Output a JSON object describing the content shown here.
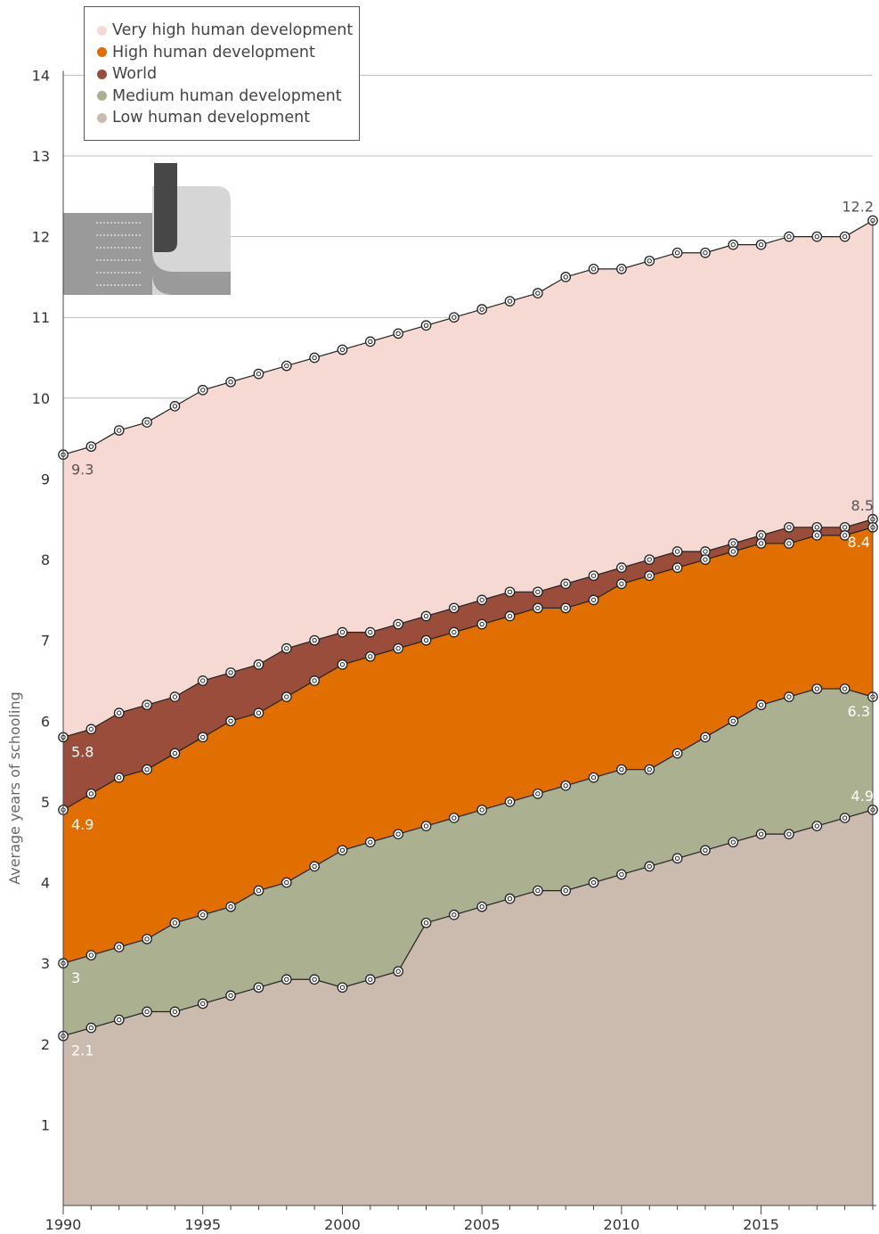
{
  "chart_data": {
    "type": "area",
    "ylabel": "Average years of schooling",
    "ylim": [
      0,
      14.6
    ],
    "xlim": [
      1990,
      2019
    ],
    "x": [
      1990,
      1991,
      1992,
      1993,
      1994,
      1995,
      1996,
      1997,
      1998,
      1999,
      2000,
      2001,
      2002,
      2003,
      2004,
      2005,
      2006,
      2007,
      2008,
      2009,
      2010,
      2011,
      2012,
      2013,
      2014,
      2015,
      2016,
      2017,
      2018,
      2019
    ],
    "x_ticks": [
      1990,
      1995,
      2000,
      2005,
      2010,
      2015
    ],
    "y_ticks": [
      1,
      2,
      3,
      4,
      5,
      6,
      7,
      8,
      9,
      10,
      11,
      12,
      13,
      14
    ],
    "grid": "horizontal",
    "legend_position": "top-left",
    "series": [
      {
        "name": "Very high human development",
        "color": "#f7d9d3",
        "values": [
          9.3,
          9.4,
          9.6,
          9.7,
          9.9,
          10.1,
          10.2,
          10.3,
          10.4,
          10.5,
          10.6,
          10.7,
          10.8,
          10.9,
          11.0,
          11.1,
          11.2,
          11.3,
          11.5,
          11.6,
          11.6,
          11.7,
          11.8,
          11.8,
          11.9,
          11.9,
          12.0,
          12.0,
          12.0,
          12.2
        ]
      },
      {
        "name": "World",
        "color": "#9a4d3a",
        "values": [
          5.8,
          5.9,
          6.1,
          6.2,
          6.3,
          6.5,
          6.6,
          6.7,
          6.9,
          7.0,
          7.1,
          7.1,
          7.2,
          7.3,
          7.4,
          7.5,
          7.6,
          7.6,
          7.7,
          7.8,
          7.9,
          8.0,
          8.1,
          8.1,
          8.2,
          8.3,
          8.4,
          8.4,
          8.4,
          8.5
        ]
      },
      {
        "name": "High human development",
        "color": "#e06e00",
        "values": [
          4.9,
          5.1,
          5.3,
          5.4,
          5.6,
          5.8,
          6.0,
          6.1,
          6.3,
          6.5,
          6.7,
          6.8,
          6.9,
          7.0,
          7.1,
          7.2,
          7.3,
          7.4,
          7.4,
          7.5,
          7.7,
          7.8,
          7.9,
          8.0,
          8.1,
          8.2,
          8.2,
          8.3,
          8.3,
          8.4
        ]
      },
      {
        "name": "Medium human development",
        "color": "#abb091",
        "values": [
          3.0,
          3.1,
          3.2,
          3.3,
          3.5,
          3.6,
          3.7,
          3.9,
          4.0,
          4.2,
          4.4,
          4.5,
          4.6,
          4.7,
          4.8,
          4.9,
          5.0,
          5.1,
          5.2,
          5.3,
          5.4,
          5.4,
          5.6,
          5.8,
          6.0,
          6.2,
          6.3,
          6.4,
          6.4,
          6.3
        ]
      },
      {
        "name": "Low human development",
        "color": "#cbbbae",
        "values": [
          2.1,
          2.2,
          2.3,
          2.4,
          2.4,
          2.5,
          2.6,
          2.7,
          2.8,
          2.8,
          2.7,
          2.8,
          2.9,
          3.5,
          3.6,
          3.7,
          3.8,
          3.9,
          3.9,
          4.0,
          4.1,
          4.2,
          4.3,
          4.4,
          4.5,
          4.6,
          4.6,
          4.7,
          4.8,
          4.9
        ]
      }
    ],
    "annotations": [
      {
        "text": "9.3",
        "x": 1990,
        "y": 9.3,
        "color": "#555555"
      },
      {
        "text": "12.2",
        "x": 2019,
        "y": 12.2,
        "color": "#555555"
      },
      {
        "text": "8.5",
        "x": 2019,
        "y": 8.5,
        "color": "#555555"
      },
      {
        "text": "8.4",
        "x": 2019,
        "y": 8.4,
        "color": "#ffffff"
      },
      {
        "text": "5.8",
        "x": 1990,
        "y": 5.8,
        "color": "#ffffff"
      },
      {
        "text": "4.9",
        "x": 1990,
        "y": 4.9,
        "color": "#ffffff"
      },
      {
        "text": "6.3",
        "x": 2019,
        "y": 6.3,
        "color": "#ffffff"
      },
      {
        "text": "4.9",
        "x": 2019,
        "y": 4.9,
        "color": "#ffffff"
      },
      {
        "text": "3",
        "x": 1990,
        "y": 3.0,
        "color": "#ffffff"
      },
      {
        "text": "2.1",
        "x": 1990,
        "y": 2.1,
        "color": "#ffffff"
      }
    ]
  },
  "legend": {
    "items": [
      {
        "label": "Very high human development",
        "color": "#f7d9d3"
      },
      {
        "label": "High human development",
        "color": "#e06e00"
      },
      {
        "label": "World",
        "color": "#9a4d3a"
      },
      {
        "label": "Medium human development",
        "color": "#abb091"
      },
      {
        "label": "Low human development",
        "color": "#cbbbae"
      }
    ]
  },
  "decor": {
    "icon_name": "folded-page-icon"
  }
}
